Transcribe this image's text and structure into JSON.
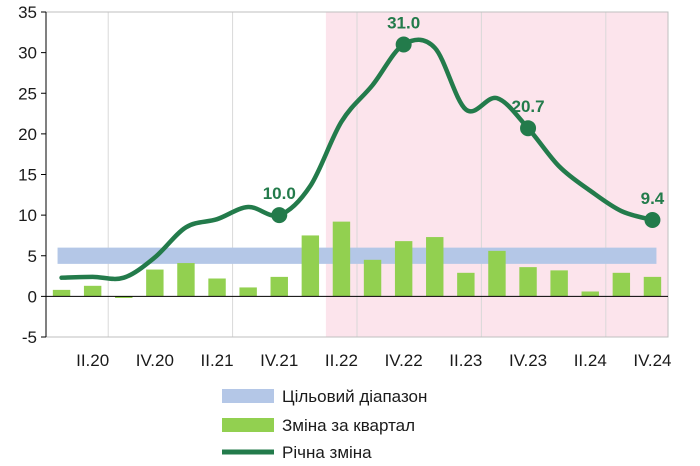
{
  "chart_data": {
    "type": "bar",
    "title": "",
    "xlabel": "",
    "ylabel": "",
    "ylim": [
      -5,
      35
    ],
    "y_ticks": [
      "-5",
      "0",
      "5",
      "10",
      "15",
      "20",
      "25",
      "30",
      "35"
    ],
    "x_tick_labels": [
      "II.20",
      "IV.20",
      "II.21",
      "IV.21",
      "II.22",
      "IV.22",
      "II.23",
      "IV.23",
      "II.24",
      "IV.24"
    ],
    "grid": "vertical",
    "target_range": {
      "name": "Цільовий діапазон",
      "low": 4.0,
      "high": 6.0,
      "color": "#b4c7e7"
    },
    "highlight_period": {
      "from_index": 9,
      "to_index": 19,
      "color": "#fce4ec"
    },
    "quarterly": {
      "name": "Зміна за квартал",
      "color": "#92d050",
      "values": [
        0.8,
        1.3,
        -0.2,
        3.3,
        4.1,
        2.2,
        1.1,
        2.4,
        7.5,
        9.2,
        4.5,
        6.8,
        7.3,
        2.9,
        5.6,
        3.6,
        3.2,
        0.6,
        2.9,
        2.4
      ]
    },
    "annual": {
      "name": "Річна зміна",
      "color": "#237b4b",
      "values": [
        2.3,
        2.4,
        2.3,
        4.8,
        8.5,
        9.5,
        11.0,
        10.0,
        13.6,
        21.5,
        26.0,
        31.0,
        30.6,
        23.0,
        24.4,
        20.7,
        16.0,
        13.0,
        10.5,
        9.4
      ]
    },
    "highlight_points": [
      {
        "index": 7,
        "label": "10.0"
      },
      {
        "index": 11,
        "label": "31.0"
      },
      {
        "index": 15,
        "label": "20.7"
      },
      {
        "index": 19,
        "label": "9.4"
      }
    ],
    "legend": [
      "Цільовий діапазон",
      "Зміна за квартал",
      "Річна зміна"
    ],
    "legend_position": "bottom",
    "colors": {
      "grid": "#d9d9d9",
      "axis": "#000000",
      "border": "#bfbfbf"
    }
  }
}
